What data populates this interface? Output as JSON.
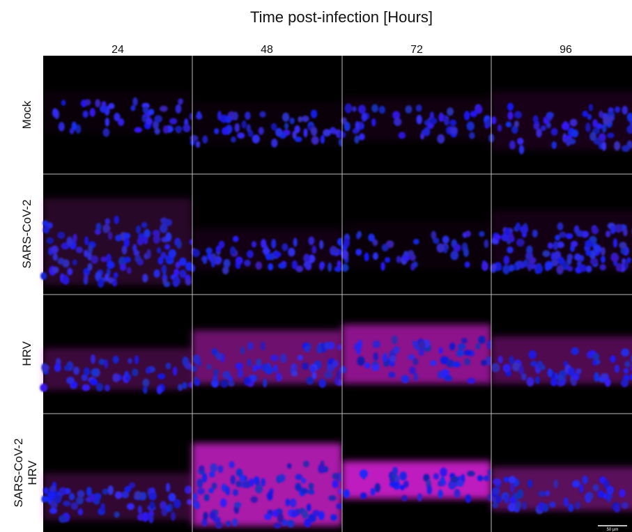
{
  "header": {
    "title": "Time post-infection [Hours]",
    "columns": [
      "24",
      "48",
      "72",
      "96"
    ]
  },
  "rows": [
    {
      "label": "Mock"
    },
    {
      "label": "SARS-CoV-2"
    },
    {
      "label": "HRV"
    },
    {
      "label_lines": [
        "SARS-CoV-2",
        "HRV"
      ]
    }
  ],
  "scale_bar": "50 µm"
}
